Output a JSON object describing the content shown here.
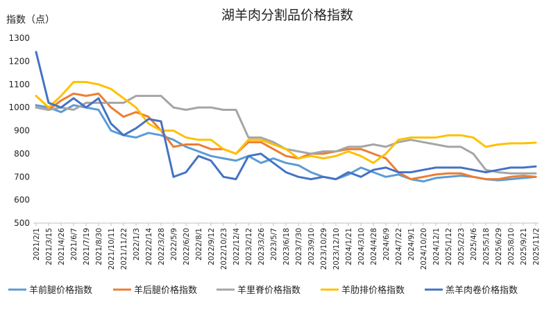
{
  "chart_data": {
    "type": "line",
    "title": "湖羊肉分割品价格指数",
    "ylabel": "指数（点）",
    "xlabel": "",
    "ylim": [
      500,
      1300
    ],
    "yticks": [
      500,
      600,
      700,
      800,
      900,
      1000,
      1100,
      1200,
      1300
    ],
    "grid": false,
    "legend_position": "bottom",
    "x_tick_labels": [
      "2021/2/1",
      "2021/3/15",
      "2021/4/26",
      "2021/6/7",
      "2021/7/19",
      "2021/8/30",
      "2021/10/11",
      "2021/11/22",
      "2022/1/3",
      "2022/2/14",
      "2022/3/28",
      "2022/5/9",
      "2022/6/20",
      "2022/8/1",
      "2022/9/12",
      "2022/10/23",
      "2022/12/4",
      "2023/2/12",
      "2023/3/26",
      "2023/5/7",
      "2023/6/18",
      "2023/7/30",
      "2023/9/10",
      "2023/10/29",
      "2023/12/10",
      "2024/1/21",
      "2024/3/10",
      "2024/4/28",
      "2024/6/9",
      "2024/7/22",
      "2024/9/1",
      "2024/10/20",
      "2024/12/1",
      "2025/1/12",
      "2025/2/23",
      "2025/4/6",
      "2025/5/18",
      "2025/6/29",
      "2025/8/10",
      "2025/9/21",
      "2025/11/2"
    ],
    "series": [
      {
        "name": "羊前腿价格指数",
        "color": "#5b9bd5",
        "values": [
          1010,
          1000,
          980,
          1010,
          1000,
          990,
          900,
          880,
          870,
          890,
          880,
          860,
          830,
          810,
          790,
          780,
          770,
          790,
          760,
          780,
          760,
          750,
          720,
          700,
          690,
          710,
          740,
          720,
          700,
          710,
          690,
          680,
          695,
          700,
          705,
          700,
          690,
          685,
          690,
          695,
          700
        ]
      },
      {
        "name": "羊后腿价格指数",
        "color": "#ed7d31",
        "values": [
          1000,
          990,
          1030,
          1060,
          1050,
          1060,
          1000,
          960,
          980,
          960,
          900,
          830,
          840,
          840,
          820,
          820,
          800,
          850,
          850,
          820,
          790,
          780,
          800,
          800,
          810,
          820,
          820,
          800,
          780,
          720,
          690,
          700,
          710,
          715,
          715,
          700,
          690,
          690,
          700,
          705,
          700
        ]
      },
      {
        "name": "羊里脊价格指数",
        "color": "#a5a5a5",
        "values": [
          1000,
          990,
          1000,
          990,
          1020,
          1020,
          1020,
          1020,
          1050,
          1050,
          1050,
          1000,
          990,
          1000,
          1000,
          990,
          990,
          870,
          870,
          850,
          820,
          810,
          800,
          810,
          810,
          830,
          830,
          840,
          830,
          850,
          860,
          850,
          840,
          830,
          830,
          800,
          730,
          720,
          715,
          715,
          715
        ]
      },
      {
        "name": "羊肋排价格指数",
        "color": "#ffc000",
        "values": [
          1050,
          1000,
          1050,
          1110,
          1110,
          1100,
          1080,
          1040,
          1000,
          930,
          900,
          900,
          870,
          860,
          860,
          820,
          800,
          860,
          860,
          840,
          820,
          780,
          790,
          780,
          790,
          810,
          790,
          760,
          800,
          860,
          870,
          870,
          870,
          880,
          880,
          870,
          830,
          840,
          845,
          845,
          848
        ]
      },
      {
        "name": "羔羊肉卷价格指数",
        "color": "#4472c4",
        "values": [
          1240,
          1020,
          1000,
          1040,
          1000,
          1040,
          930,
          880,
          910,
          950,
          940,
          700,
          720,
          790,
          770,
          700,
          690,
          790,
          800,
          760,
          720,
          700,
          690,
          700,
          690,
          720,
          700,
          730,
          740,
          720,
          720,
          730,
          740,
          740,
          740,
          730,
          720,
          730,
          740,
          740,
          745
        ]
      }
    ]
  }
}
